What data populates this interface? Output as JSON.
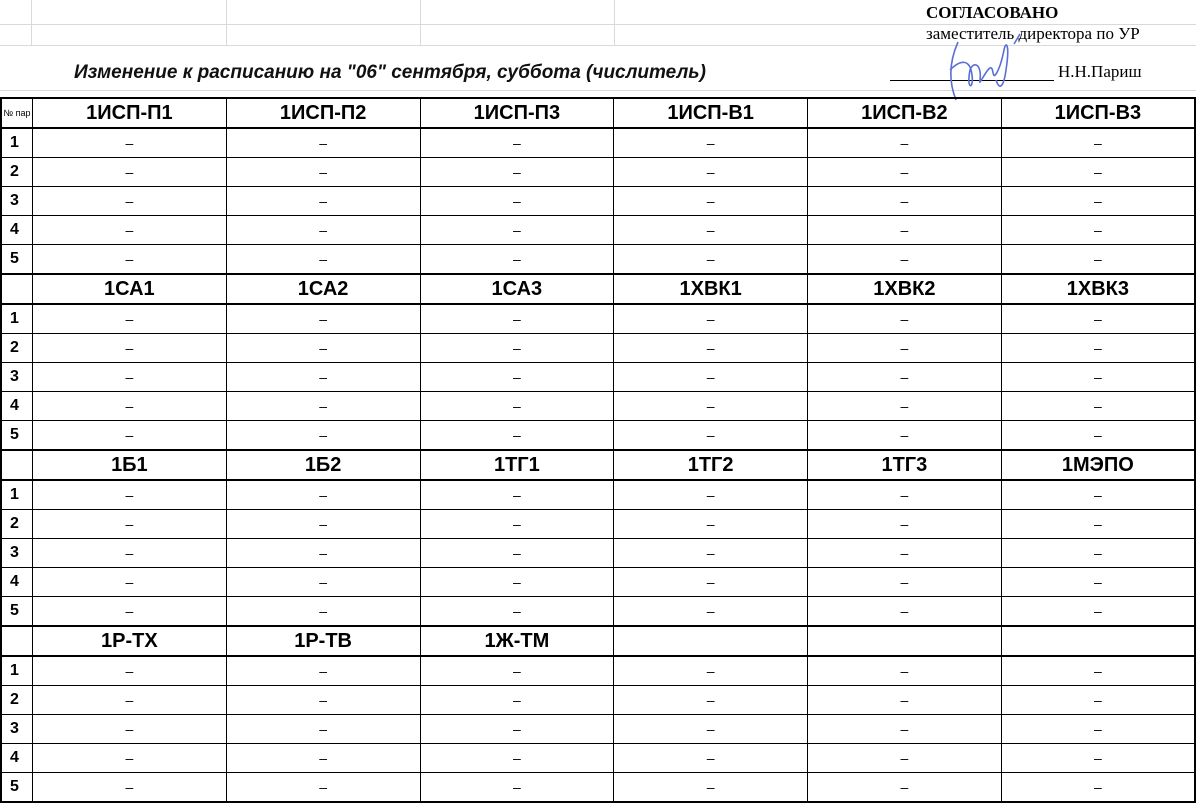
{
  "title": "Изменение к расписанию на \"06\" сентября,  суббота (числитель)",
  "approval": {
    "heading": "СОГЛАСОВАНО",
    "position": "заместитель директора по УР",
    "name": "Н.Н.Париш",
    "signature_color": "#5a6fd6"
  },
  "num_header": "№ пар",
  "lesson_numbers": [
    "1",
    "2",
    "3",
    "4",
    "5"
  ],
  "empty_mark": "–",
  "blocks": [
    {
      "groups": [
        "1ИСП-П1",
        "1ИСП-П2",
        "1ИСП-П3",
        "1ИСП-В1",
        "1ИСП-В2",
        "1ИСП-В3"
      ]
    },
    {
      "groups": [
        "1СА1",
        "1СА2",
        "1СА3",
        "1ХВК1",
        "1ХВК2",
        "1ХВК3"
      ]
    },
    {
      "groups": [
        "1Б1",
        "1Б2",
        "1ТГ1",
        "1ТГ2",
        "1ТГ3",
        "1МЭПО"
      ]
    },
    {
      "groups": [
        "1Р-ТХ",
        "1Р-ТВ",
        "1Ж-ТМ",
        "",
        "",
        ""
      ]
    }
  ]
}
